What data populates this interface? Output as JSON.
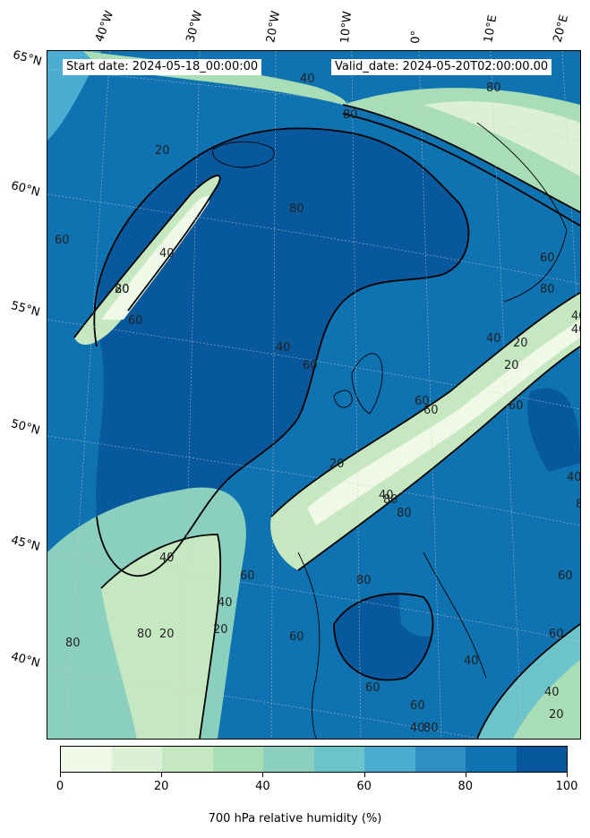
{
  "header": {
    "start_date": "Start date: 2024-05-18_00:00:00",
    "valid_date": "Valid_date: 2024-05-20T02:00:00.00"
  },
  "map": {
    "projection": "conic",
    "longitude_labels": [
      "40°W",
      "30°W",
      "20°W",
      "10°W",
      "0°",
      "10°E",
      "20°E"
    ],
    "latitude_labels": [
      "65°N",
      "60°N",
      "55°N",
      "50°N",
      "45°N",
      "40°N"
    ],
    "contour_labels": [
      "40",
      "80",
      "80",
      "60",
      "20",
      "20",
      "40",
      "60",
      "80",
      "20",
      "60",
      "40",
      "60",
      "80",
      "40",
      "20",
      "60",
      "80",
      "40",
      "20",
      "60",
      "40",
      "60",
      "80",
      "40",
      "80",
      "80",
      "60",
      "40",
      "20",
      "80",
      "80",
      "60",
      "60",
      "40",
      "40",
      "60",
      "20",
      "40",
      "80",
      "60",
      "40",
      "80",
      "20",
      "80",
      "40",
      "60"
    ]
  },
  "colorbar": {
    "label": "700 hPa relative humidity (%)",
    "ticks": [
      "0",
      "20",
      "40",
      "60",
      "80",
      "100"
    ],
    "colors": [
      "#f0f9e8",
      "#dcf0d5",
      "#c6e8c1",
      "#a8ddb5",
      "#8bd0be",
      "#6cc3c9",
      "#4aadd1",
      "#2e8fc1",
      "#0f72b1",
      "#08589e"
    ]
  }
}
